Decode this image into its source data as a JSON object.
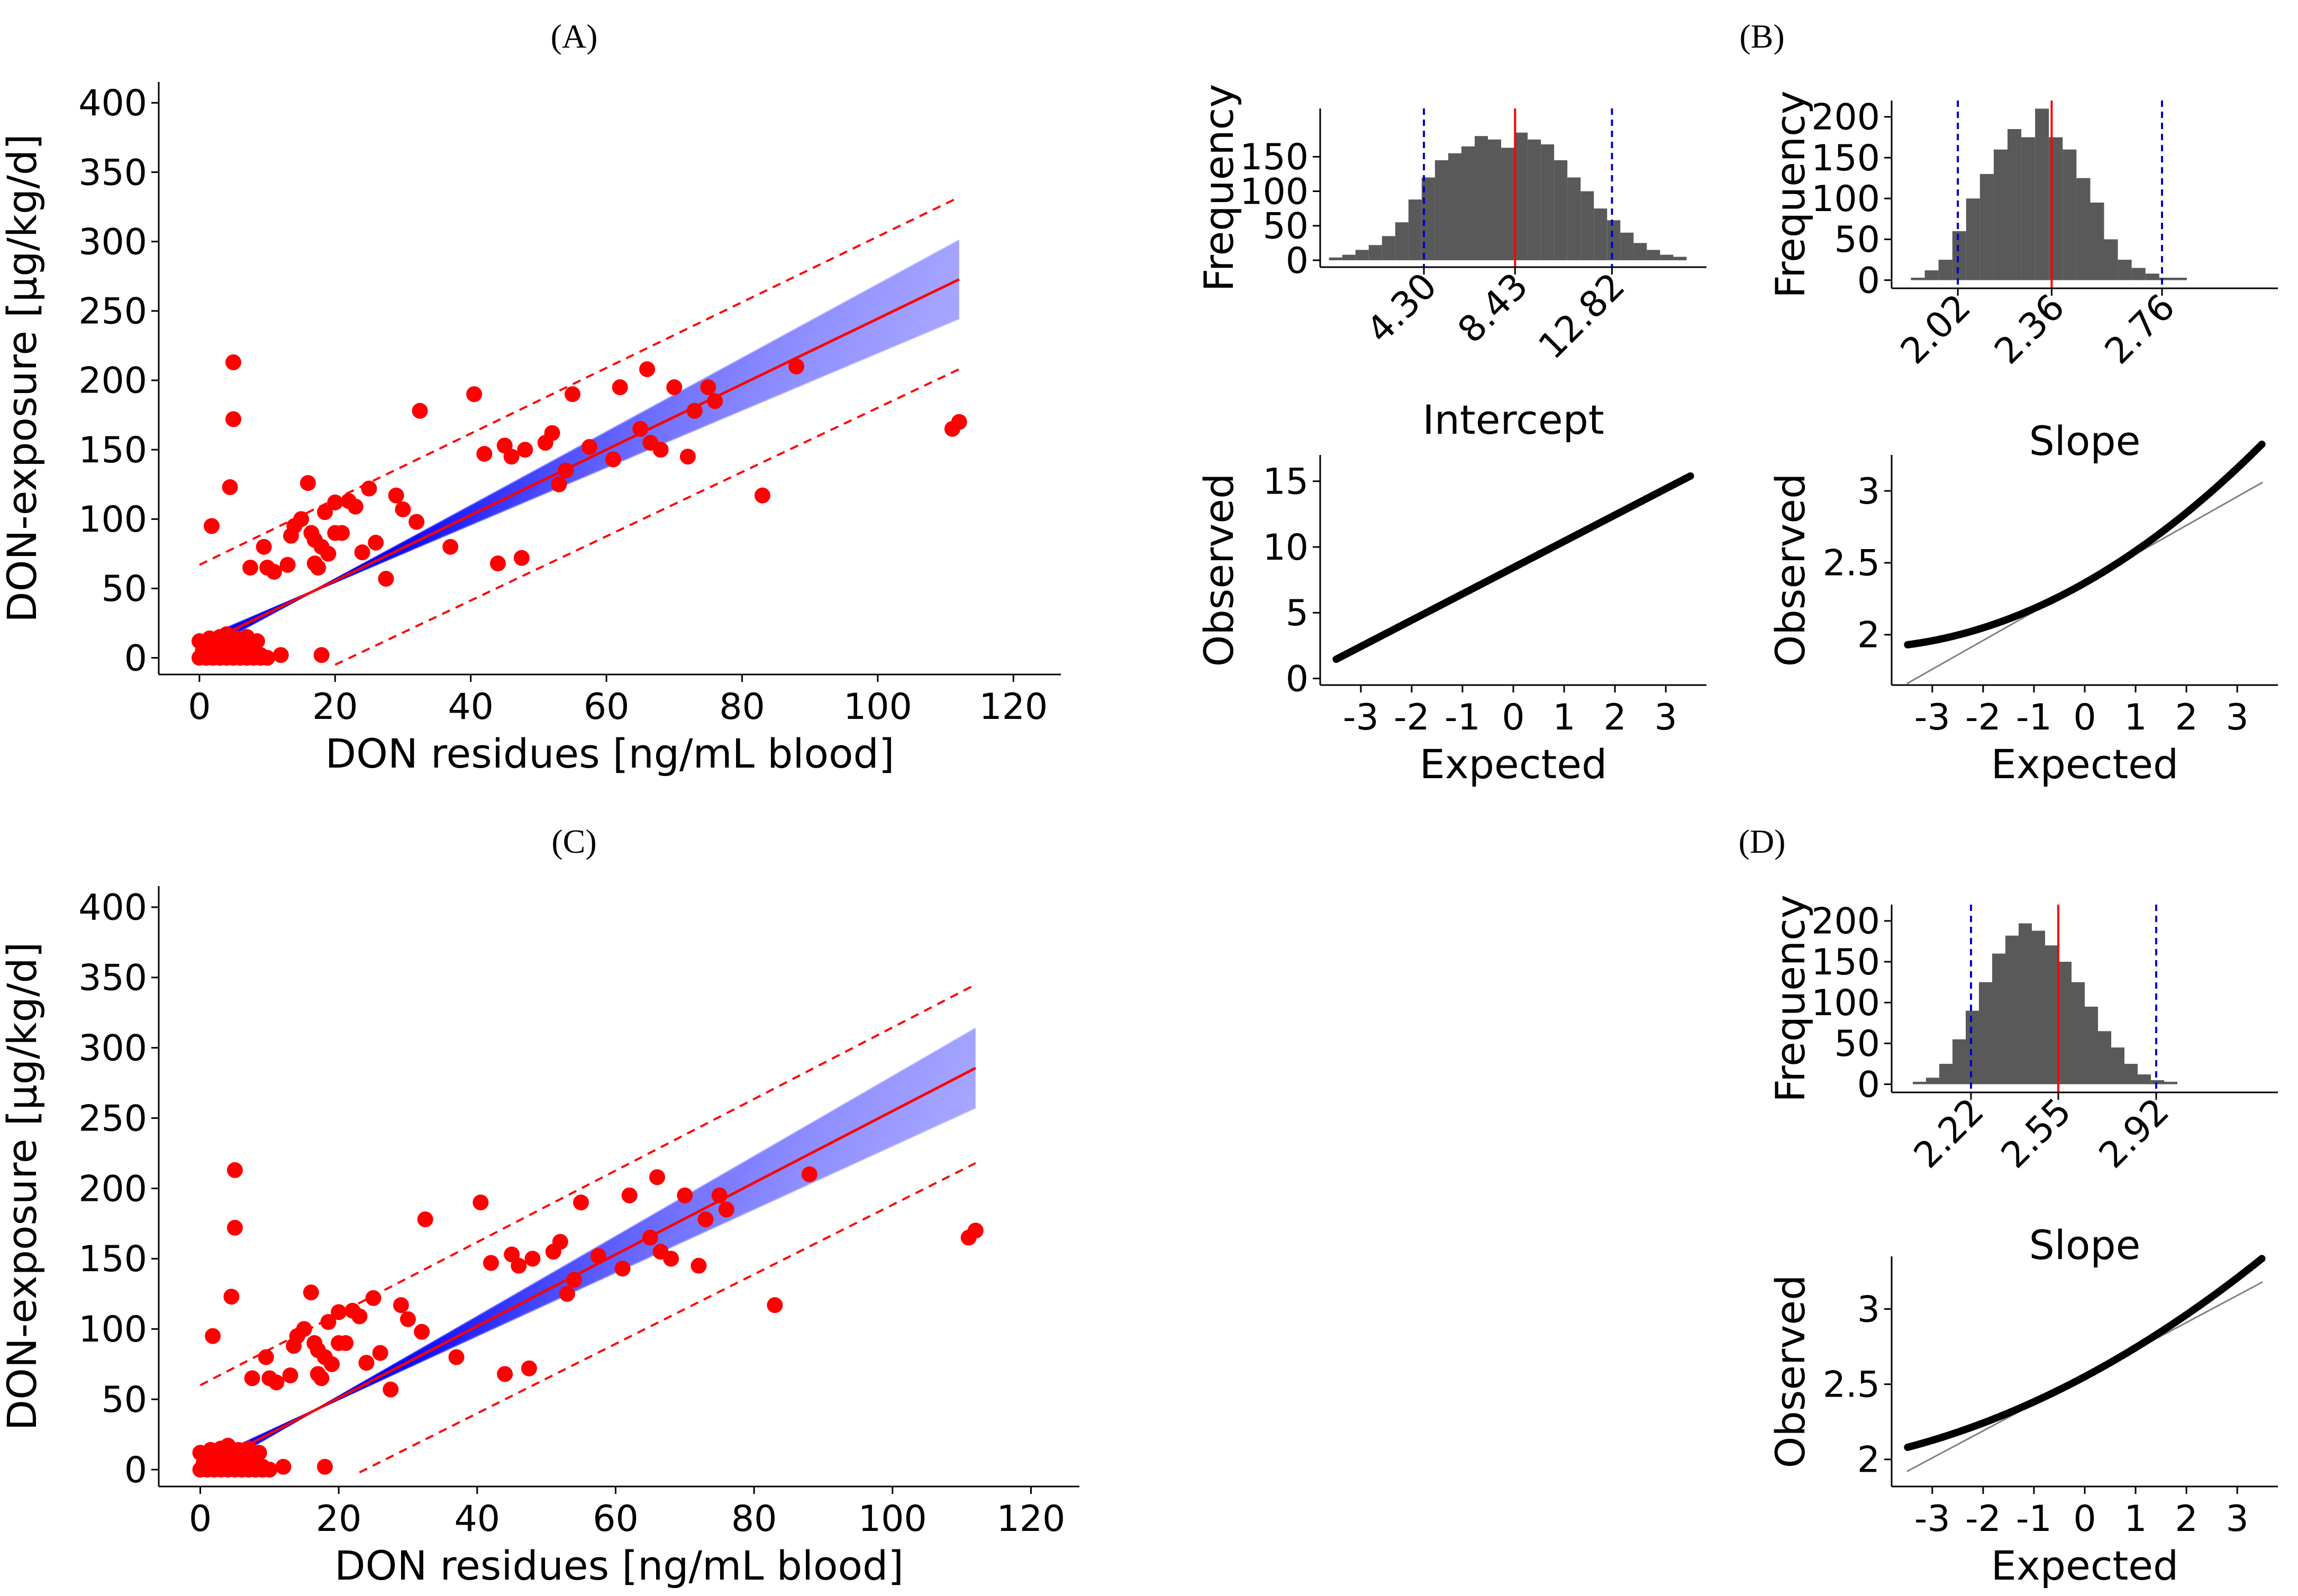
{
  "panel_labels": {
    "a": "(A)",
    "b": "(B)",
    "c": "(C)",
    "d": "(D)"
  },
  "colors": {
    "fit_line": "#ff0000",
    "posterior_lines": "#0000ff",
    "prediction_band": "#ff0000",
    "points": "#ff0000",
    "bars": "#595959",
    "median_line": "#ff0000",
    "ci_lines": "#0000cc",
    "qq_points": "#000000",
    "qq_reference": "#808080"
  },
  "chart_data": [
    {
      "id": "A",
      "type": "scatter",
      "xlabel": "DON residues [ng/mL blood]",
      "ylabel": "DON-exposure [µg/kg/d]",
      "xlim": [
        -6,
        127
      ],
      "ylim": [
        -12,
        415
      ],
      "xticks": [
        0,
        20,
        40,
        60,
        80,
        100,
        120
      ],
      "yticks": [
        0,
        50,
        100,
        150,
        200,
        250,
        300,
        350,
        400
      ],
      "fit_line": {
        "intercept": 8.43,
        "slope": 2.36,
        "x_range": [
          0.5,
          112
        ]
      },
      "posterior_lines": {
        "count": 60,
        "x_range": [
          0.5,
          112
        ]
      },
      "prediction_band": {
        "upper_start": [
          0,
          67
        ],
        "upper_end": [
          112,
          332
        ],
        "lower_start": [
          20,
          -5
        ],
        "lower_end": [
          112,
          208
        ]
      },
      "points": [
        [
          5,
          213
        ],
        [
          5,
          172
        ],
        [
          1.8,
          95
        ],
        [
          4.5,
          123
        ],
        [
          7.5,
          65
        ],
        [
          9.5,
          80
        ],
        [
          10,
          65
        ],
        [
          11,
          62
        ],
        [
          13,
          67
        ],
        [
          13.5,
          88
        ],
        [
          14,
          95
        ],
        [
          15,
          100
        ],
        [
          16,
          126
        ],
        [
          16.5,
          90
        ],
        [
          17,
          85
        ],
        [
          17,
          68
        ],
        [
          17.5,
          65
        ],
        [
          18,
          80
        ],
        [
          18.5,
          105
        ],
        [
          19,
          75
        ],
        [
          20,
          112
        ],
        [
          20,
          90
        ],
        [
          21,
          90
        ],
        [
          22,
          113
        ],
        [
          23,
          109
        ],
        [
          24,
          76
        ],
        [
          25,
          122
        ],
        [
          26,
          83
        ],
        [
          27.5,
          57
        ],
        [
          29,
          117
        ],
        [
          30,
          107
        ],
        [
          32,
          98
        ],
        [
          32.5,
          178
        ],
        [
          37,
          80
        ],
        [
          40.5,
          190
        ],
        [
          42,
          147
        ],
        [
          44,
          68
        ],
        [
          45,
          153
        ],
        [
          46,
          145
        ],
        [
          47.5,
          72
        ],
        [
          48,
          150
        ],
        [
          51,
          155
        ],
        [
          52,
          162
        ],
        [
          53,
          125
        ],
        [
          54,
          135
        ],
        [
          55,
          190
        ],
        [
          57.5,
          152
        ],
        [
          61,
          143
        ],
        [
          62,
          195
        ],
        [
          65,
          165
        ],
        [
          66,
          208
        ],
        [
          66.5,
          155
        ],
        [
          68,
          150
        ],
        [
          70,
          195
        ],
        [
          72,
          145
        ],
        [
          73,
          178
        ],
        [
          75,
          195
        ],
        [
          76,
          185
        ],
        [
          83,
          117
        ],
        [
          88,
          210
        ],
        [
          111,
          165
        ],
        [
          112,
          170
        ],
        [
          18,
          2
        ],
        [
          12,
          2
        ],
        [
          0,
          12
        ],
        [
          0.5,
          5
        ],
        [
          1,
          3
        ],
        [
          1,
          10
        ],
        [
          1.5,
          14
        ],
        [
          2,
          7
        ],
        [
          2,
          2
        ],
        [
          2.5,
          12
        ],
        [
          3,
          4
        ],
        [
          3,
          15
        ],
        [
          3.5,
          9
        ],
        [
          4,
          5
        ],
        [
          4,
          17
        ],
        [
          4.5,
          11
        ],
        [
          5,
          2
        ],
        [
          5.5,
          14
        ],
        [
          6,
          6
        ],
        [
          6.5,
          10
        ],
        [
          7,
          15
        ],
        [
          7.5,
          3
        ],
        [
          8,
          7
        ],
        [
          8.5,
          12
        ],
        [
          9,
          2
        ],
        [
          0,
          0
        ],
        [
          1,
          0
        ],
        [
          2,
          0
        ],
        [
          3,
          0
        ],
        [
          4,
          0
        ],
        [
          5,
          0
        ],
        [
          6,
          0
        ],
        [
          7,
          0
        ],
        [
          8,
          0
        ],
        [
          9,
          0
        ],
        [
          10,
          0
        ]
      ]
    },
    {
      "id": "B-intercept-hist",
      "type": "bar",
      "xlabel": "Intercept",
      "ylabel": "Frequency",
      "xlim": [
        -0.4,
        17.1
      ],
      "ylim": [
        -10,
        220
      ],
      "xtick_labels": [
        "4.30",
        "8.43",
        "12.82"
      ],
      "yticks": [
        0,
        50,
        100,
        150
      ],
      "bin_width": 0.6,
      "bin_start": 0,
      "counts": [
        4,
        8,
        15,
        22,
        35,
        55,
        88,
        120,
        145,
        155,
        165,
        180,
        175,
        163,
        185,
        175,
        168,
        145,
        120,
        100,
        75,
        58,
        40,
        25,
        15,
        8,
        5
      ],
      "median": 8.43,
      "ci": [
        4.3,
        12.82
      ]
    },
    {
      "id": "B-slope-hist",
      "type": "bar",
      "xlabel": "Slope",
      "ylabel": "Frequency",
      "xlim": [
        1.78,
        3.18
      ],
      "ylim": [
        -10,
        220
      ],
      "xtick_labels": [
        "2.02",
        "2.36",
        "2.76"
      ],
      "yticks": [
        0,
        50,
        100,
        150,
        200
      ],
      "bin_width": 0.05,
      "bin_start": 1.85,
      "counts": [
        3,
        12,
        25,
        60,
        100,
        130,
        160,
        185,
        175,
        210,
        175,
        160,
        125,
        95,
        50,
        25,
        15,
        8,
        3,
        3
      ],
      "median": 2.36,
      "ci": [
        2.02,
        2.76
      ]
    },
    {
      "id": "B-intercept-qq",
      "type": "scatter",
      "xlabel": "Expected",
      "ylabel": "Observed",
      "xlim": [
        -3.8,
        3.8
      ],
      "ylim": [
        -0.5,
        17
      ],
      "xticks": [
        -3,
        -2,
        -1,
        0,
        1,
        2,
        3
      ],
      "yticks": [
        0,
        5,
        10,
        15
      ],
      "reference_line": {
        "intercept": 8.43,
        "slope": 2.0
      },
      "range": [
        -3.5,
        3.5
      ],
      "curvature": 0.0
    },
    {
      "id": "B-slope-qq",
      "type": "scatter",
      "xlabel": "Expected",
      "ylabel": "Observed",
      "xlim": [
        -3.8,
        3.8
      ],
      "ylim": [
        1.65,
        3.25
      ],
      "xticks": [
        -3,
        -2,
        -1,
        0,
        1,
        2,
        3
      ],
      "yticks": [
        2.0,
        2.5,
        3.0
      ],
      "reference_line": {
        "intercept": 2.36,
        "slope": 0.2
      },
      "range": [
        -3.5,
        3.5
      ],
      "curvature": 0.022
    },
    {
      "id": "C",
      "type": "scatter",
      "xlabel": "DON residues [ng/mL blood]",
      "ylabel": "DON-exposure [µg/kg/d]",
      "xlim": [
        -6,
        127
      ],
      "ylim": [
        -12,
        415
      ],
      "xticks": [
        0,
        20,
        40,
        60,
        80,
        100,
        120
      ],
      "yticks": [
        0,
        50,
        100,
        150,
        200,
        250,
        300,
        350,
        400
      ],
      "fit_line": {
        "intercept": 0,
        "slope": 2.55,
        "x_range": [
          0.5,
          112
        ]
      },
      "posterior_lines": {
        "count": 60,
        "x_range": [
          0.5,
          112
        ]
      },
      "prediction_band": {
        "upper_start": [
          0,
          60
        ],
        "upper_end": [
          112,
          345
        ],
        "lower_start": [
          23,
          -2
        ],
        "lower_end": [
          112,
          218
        ]
      },
      "points": [
        [
          5,
          213
        ],
        [
          5,
          172
        ],
        [
          1.8,
          95
        ],
        [
          4.5,
          123
        ],
        [
          7.5,
          65
        ],
        [
          9.5,
          80
        ],
        [
          10,
          65
        ],
        [
          11,
          62
        ],
        [
          13,
          67
        ],
        [
          13.5,
          88
        ],
        [
          14,
          95
        ],
        [
          15,
          100
        ],
        [
          16,
          126
        ],
        [
          16.5,
          90
        ],
        [
          17,
          85
        ],
        [
          17,
          68
        ],
        [
          17.5,
          65
        ],
        [
          18,
          80
        ],
        [
          18.5,
          105
        ],
        [
          19,
          75
        ],
        [
          20,
          112
        ],
        [
          20,
          90
        ],
        [
          21,
          90
        ],
        [
          22,
          113
        ],
        [
          23,
          109
        ],
        [
          24,
          76
        ],
        [
          25,
          122
        ],
        [
          26,
          83
        ],
        [
          27.5,
          57
        ],
        [
          29,
          117
        ],
        [
          30,
          107
        ],
        [
          32,
          98
        ],
        [
          32.5,
          178
        ],
        [
          37,
          80
        ],
        [
          40.5,
          190
        ],
        [
          42,
          147
        ],
        [
          44,
          68
        ],
        [
          45,
          153
        ],
        [
          46,
          145
        ],
        [
          47.5,
          72
        ],
        [
          48,
          150
        ],
        [
          51,
          155
        ],
        [
          52,
          162
        ],
        [
          53,
          125
        ],
        [
          54,
          135
        ],
        [
          55,
          190
        ],
        [
          57.5,
          152
        ],
        [
          61,
          143
        ],
        [
          62,
          195
        ],
        [
          65,
          165
        ],
        [
          66,
          208
        ],
        [
          66.5,
          155
        ],
        [
          68,
          150
        ],
        [
          70,
          195
        ],
        [
          72,
          145
        ],
        [
          73,
          178
        ],
        [
          75,
          195
        ],
        [
          76,
          185
        ],
        [
          83,
          117
        ],
        [
          88,
          210
        ],
        [
          111,
          165
        ],
        [
          112,
          170
        ],
        [
          18,
          2
        ],
        [
          12,
          2
        ],
        [
          0,
          12
        ],
        [
          0.5,
          5
        ],
        [
          1,
          3
        ],
        [
          1,
          10
        ],
        [
          1.5,
          14
        ],
        [
          2,
          7
        ],
        [
          2,
          2
        ],
        [
          2.5,
          12
        ],
        [
          3,
          4
        ],
        [
          3,
          15
        ],
        [
          3.5,
          9
        ],
        [
          4,
          5
        ],
        [
          4,
          17
        ],
        [
          4.5,
          11
        ],
        [
          5,
          2
        ],
        [
          5.5,
          14
        ],
        [
          6,
          6
        ],
        [
          6.5,
          10
        ],
        [
          7,
          15
        ],
        [
          7.5,
          3
        ],
        [
          8,
          7
        ],
        [
          8.5,
          12
        ],
        [
          9,
          2
        ],
        [
          0,
          0
        ],
        [
          1,
          0
        ],
        [
          2,
          0
        ],
        [
          3,
          0
        ],
        [
          4,
          0
        ],
        [
          5,
          0
        ],
        [
          6,
          0
        ],
        [
          7,
          0
        ],
        [
          8,
          0
        ],
        [
          9,
          0
        ],
        [
          10,
          0
        ]
      ]
    },
    {
      "id": "D-slope-hist",
      "type": "bar",
      "xlabel": "Slope",
      "ylabel": "Frequency",
      "xlim": [
        1.92,
        3.38
      ],
      "ylim": [
        -10,
        220
      ],
      "xtick_labels": [
        "2.22",
        "2.55",
        "2.92"
      ],
      "yticks": [
        0,
        50,
        100,
        150,
        200
      ],
      "bin_width": 0.05,
      "bin_start": 2.0,
      "counts": [
        3,
        8,
        25,
        55,
        90,
        125,
        160,
        182,
        197,
        188,
        170,
        150,
        125,
        95,
        65,
        45,
        25,
        12,
        5,
        3
      ],
      "median": 2.55,
      "ci": [
        2.22,
        2.92
      ]
    },
    {
      "id": "D-slope-qq",
      "type": "scatter",
      "xlabel": "Expected",
      "ylabel": "Observed",
      "xlim": [
        -3.8,
        3.8
      ],
      "ylim": [
        1.82,
        3.35
      ],
      "xticks": [
        -3,
        -2,
        -1,
        0,
        1,
        2,
        3
      ],
      "yticks": [
        2.0,
        2.5,
        3.0
      ],
      "reference_line": {
        "intercept": 2.55,
        "slope": 0.18
      },
      "range": [
        -3.5,
        3.5
      ],
      "curvature": 0.013
    }
  ]
}
